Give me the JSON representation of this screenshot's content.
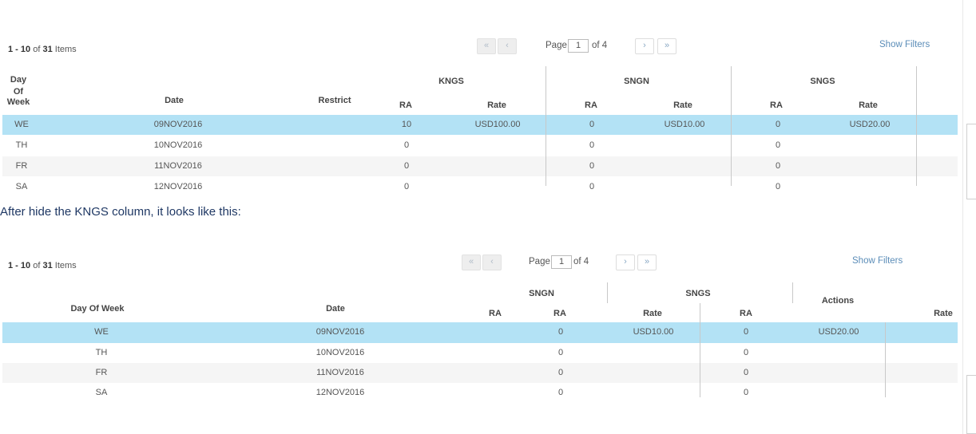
{
  "top": {
    "items_range": "1 - 10",
    "items_of": "of",
    "items_total": "31",
    "items_word": "Items",
    "pager": {
      "first": "«",
      "prev": "‹",
      "page_label": "Page",
      "page_value": "1",
      "of_pages": "of 4",
      "next": "›",
      "last": "»"
    },
    "show_filters": "Show Filters",
    "headers": {
      "day_of_week": [
        "Day",
        "Of",
        "Week"
      ],
      "date": "Date",
      "restrict": "Restrict",
      "group1": "KNGS",
      "group2": "SNGN",
      "group3": "SNGS",
      "ra": "RA",
      "rate": "Rate"
    },
    "rows": [
      {
        "dow": "WE",
        "date": "09NOV2016",
        "ra1": "10",
        "rate1": "USD100.00",
        "ra2": "0",
        "rate2": "USD10.00",
        "ra3": "0",
        "rate3": "USD20.00"
      },
      {
        "dow": "TH",
        "date": "10NOV2016",
        "ra1": "0",
        "rate1": "",
        "ra2": "0",
        "rate2": "",
        "ra3": "0",
        "rate3": ""
      },
      {
        "dow": "FR",
        "date": "11NOV2016",
        "ra1": "0",
        "rate1": "",
        "ra2": "0",
        "rate2": "",
        "ra3": "0",
        "rate3": ""
      },
      {
        "dow": "SA",
        "date": "12NOV2016",
        "ra1": "0",
        "rate1": "",
        "ra2": "0",
        "rate2": "",
        "ra3": "0",
        "rate3": ""
      }
    ]
  },
  "caption": "After hide the KNGS column, it looks like this:",
  "bottom": {
    "items_range": "1 - 10",
    "items_of": "of",
    "items_total": "31",
    "items_word": "Items",
    "pager": {
      "first": "«",
      "prev": "‹",
      "page_label": "Page",
      "page_value": "1",
      "of_pages": "of 4",
      "next": "›",
      "last": "»"
    },
    "show_filters": "Show Filters",
    "headers": {
      "day_of_week": "Day Of Week",
      "date": "Date",
      "group1": "SNGN",
      "group2": "SNGS",
      "actions": "Actions",
      "ra": "RA",
      "rate": "Rate"
    },
    "rows": [
      {
        "dow": "WE",
        "date": "09NOV2016",
        "ra1": "0",
        "rate1": "USD10.00",
        "ra2": "0",
        "rate2": "USD20.00"
      },
      {
        "dow": "TH",
        "date": "10NOV2016",
        "ra1": "0",
        "rate1": "",
        "ra2": "0",
        "rate2": ""
      },
      {
        "dow": "FR",
        "date": "11NOV2016",
        "ra1": "0",
        "rate1": "",
        "ra2": "0",
        "rate2": ""
      },
      {
        "dow": "SA",
        "date": "12NOV2016",
        "ra1": "0",
        "rate1": "",
        "ra2": "0",
        "rate2": ""
      }
    ]
  }
}
